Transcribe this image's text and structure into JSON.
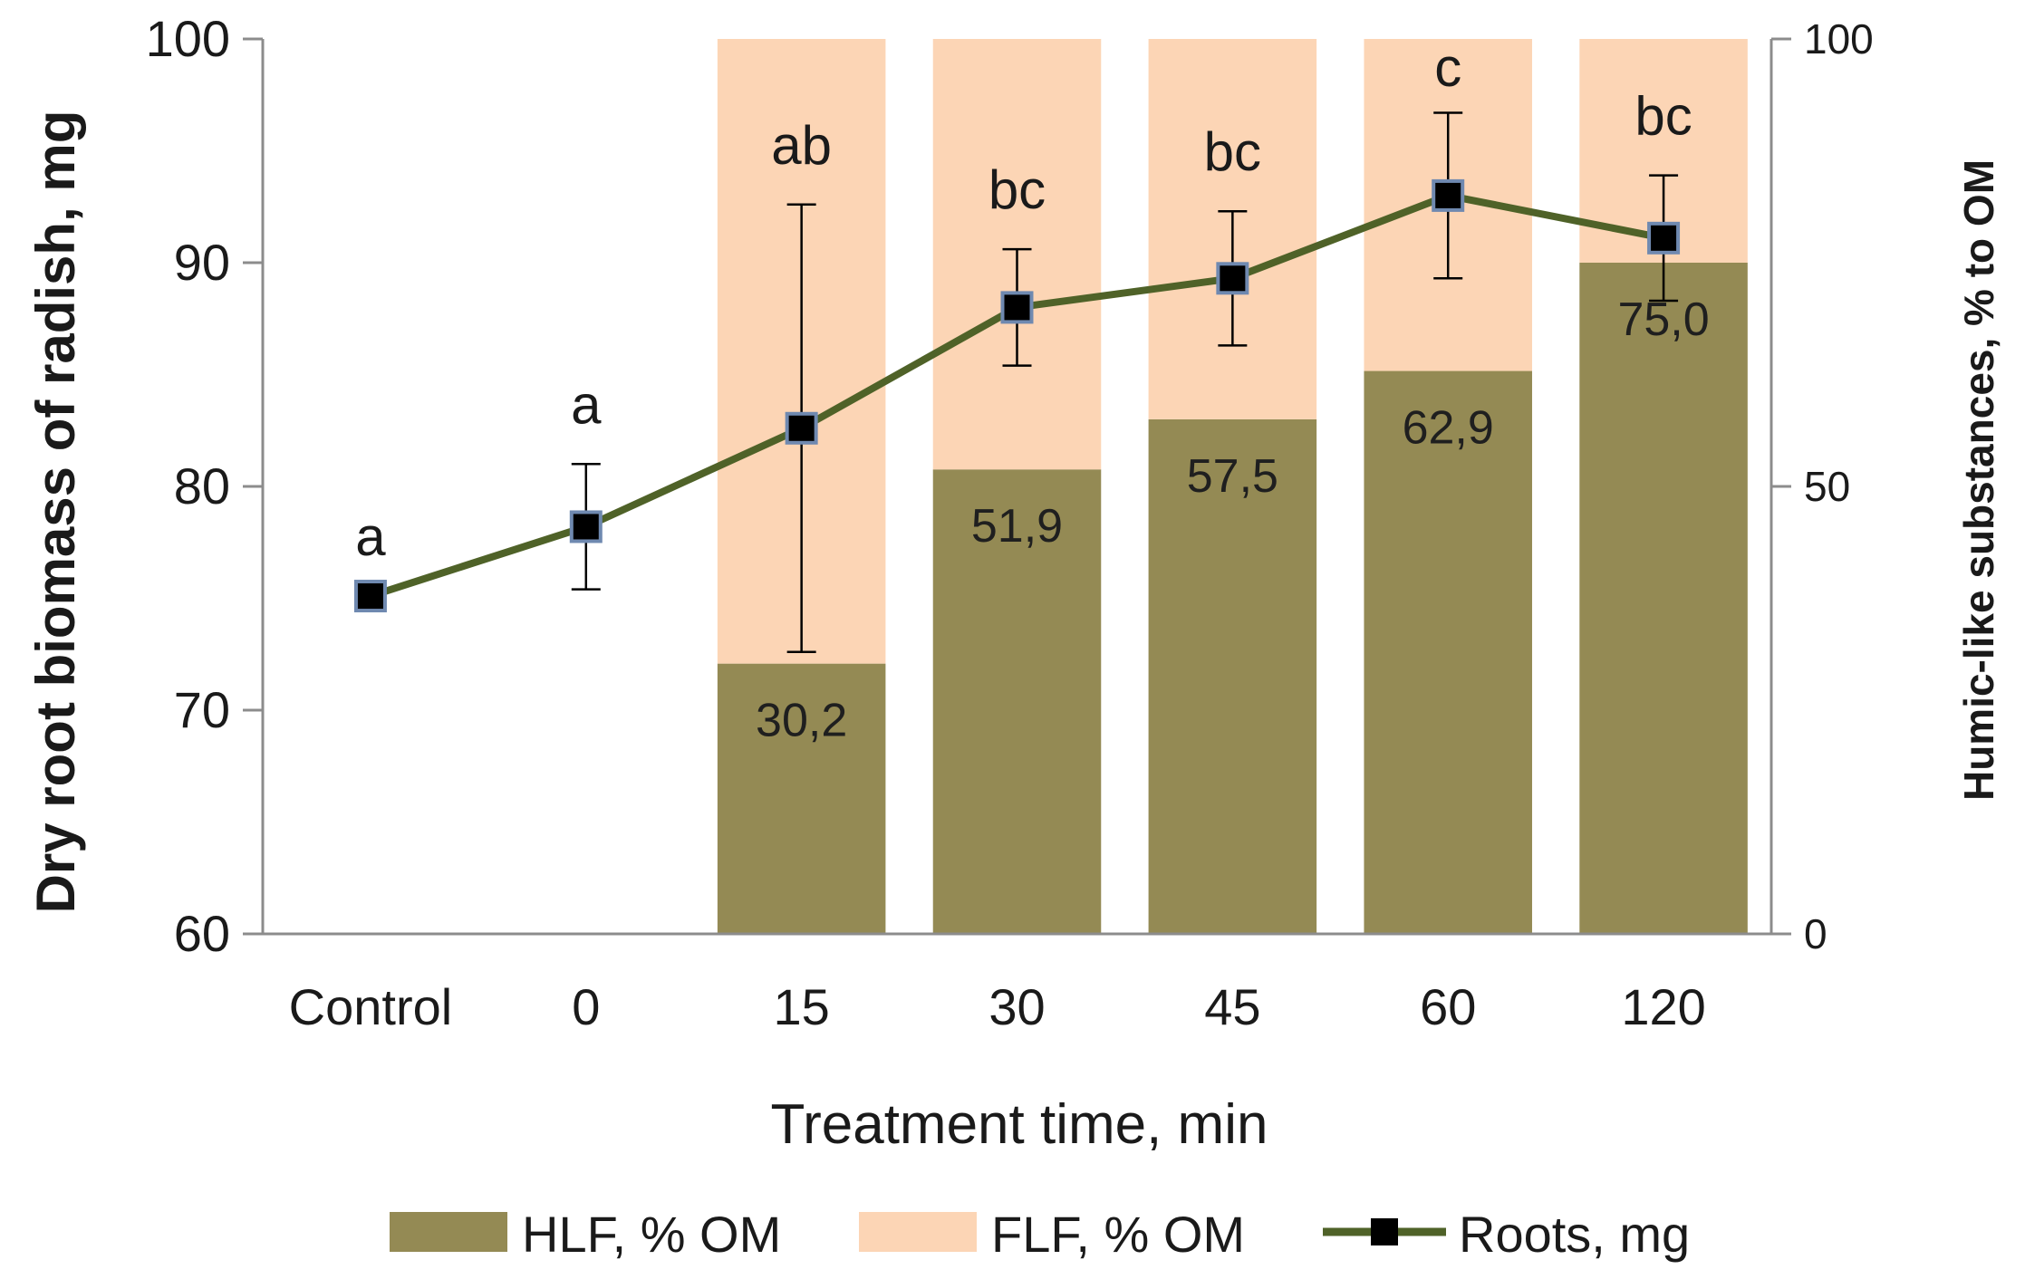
{
  "chart_data": {
    "type": "bar",
    "stacked": true,
    "categories": [
      "Control",
      "0",
      "15",
      "30",
      "45",
      "60",
      "120"
    ],
    "xlabel": "Treatment time, min",
    "ylabel": "Dry root biomass of radish, mg",
    "y2label": "Humic-like substances, % to OM",
    "ylim": [
      60,
      100
    ],
    "yticks": [
      "60",
      "70",
      "80",
      "90",
      "100"
    ],
    "y2lim": [
      0,
      100
    ],
    "y2ticks": [
      "0",
      "50",
      "100"
    ],
    "series": [
      {
        "name": "HLF, % OM",
        "kind": "bar",
        "axis": "right",
        "color": "#948a54",
        "values": [
          null,
          null,
          30.2,
          51.9,
          57.5,
          62.9,
          75.0
        ]
      },
      {
        "name": "FLF, % OM",
        "kind": "bar",
        "axis": "right",
        "color": "#fcd5b5",
        "values": [
          null,
          null,
          69.8,
          48.1,
          42.5,
          37.1,
          25.0
        ]
      },
      {
        "name": "Roots, mg",
        "kind": "line",
        "axis": "left",
        "color": "#4f6228",
        "values": [
          75.1,
          78.2,
          82.6,
          88.0,
          89.3,
          93.0,
          91.1
        ],
        "errors": [
          0,
          2.8,
          10.0,
          2.6,
          3.0,
          3.7,
          2.8
        ]
      }
    ],
    "bar_labels": [
      "",
      "",
      "30,2",
      "51,9",
      "57,5",
      "62,9",
      "75,0"
    ],
    "significance": [
      "a",
      "a",
      "ab",
      "bc",
      "bc",
      "c",
      "bc"
    ],
    "legend": {
      "position": "bottom",
      "entries": [
        "HLF, % OM",
        "FLF, % OM",
        "Roots, mg"
      ]
    },
    "grid": false
  }
}
